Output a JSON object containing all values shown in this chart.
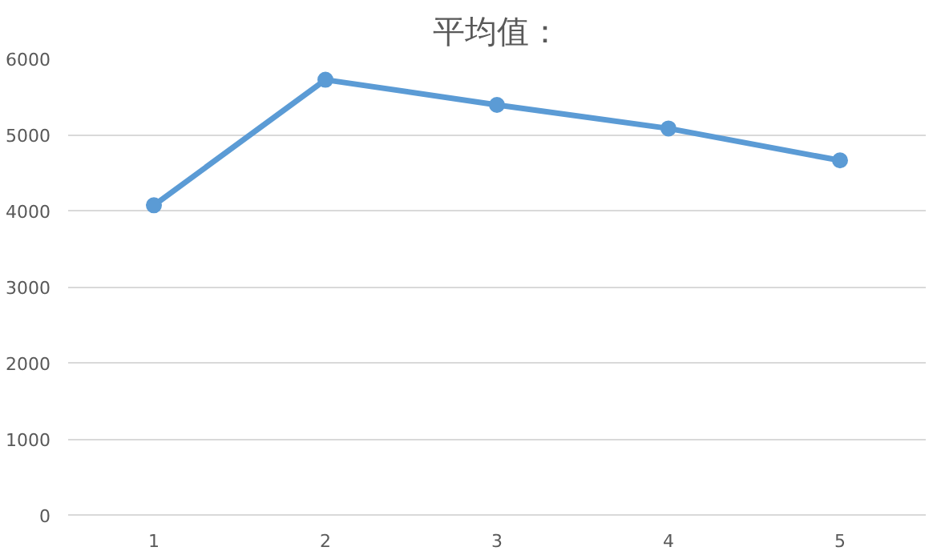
{
  "chart_data": {
    "type": "line",
    "title": "平均值：",
    "categories": [
      "1",
      "2",
      "3",
      "4",
      "5"
    ],
    "series": [
      {
        "color": "#5b9bd5",
        "values": [
          4070,
          5720,
          5390,
          5080,
          4660
        ]
      }
    ],
    "ylim": [
      0,
      6000
    ],
    "yticks": [
      0,
      1000,
      2000,
      3000,
      4000,
      5000,
      6000
    ],
    "grid": "y",
    "marker": "circle",
    "line_style": "solid"
  }
}
